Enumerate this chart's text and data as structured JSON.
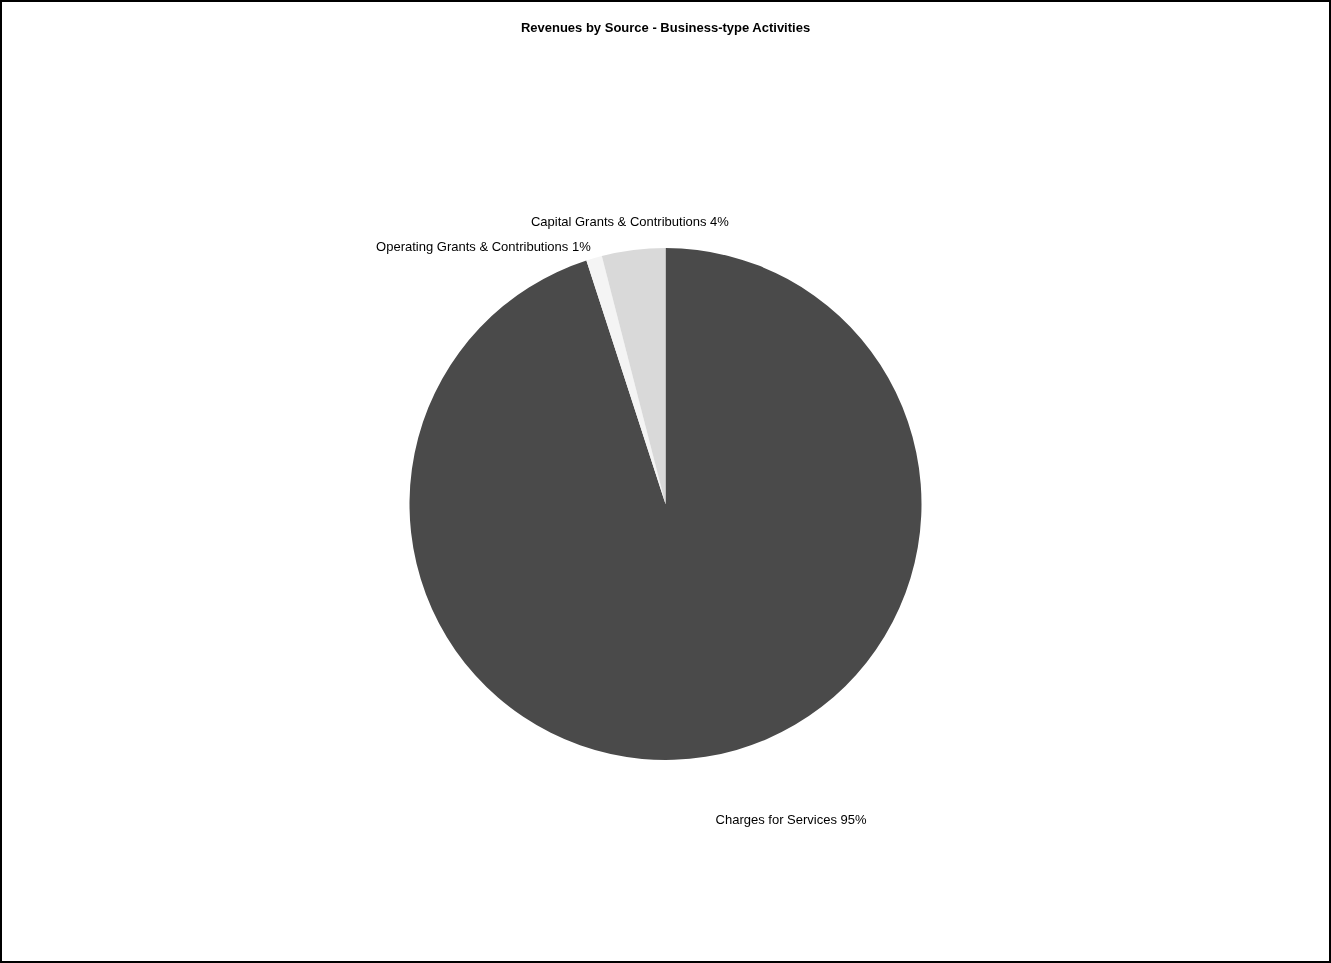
{
  "chart_data": {
    "type": "pie",
    "title": "Revenues by Source - Business-type Activities",
    "categories": [
      "Charges for Services",
      "Operating Grants & Contributions",
      "Capital Grants & Contributions"
    ],
    "values": [
      95,
      1,
      4
    ],
    "value_labels": [
      "95%",
      "1%",
      "4%"
    ],
    "colors": [
      "#4a4a4a",
      "#f4f4f4",
      "#d9d9d9"
    ],
    "legend": false
  }
}
